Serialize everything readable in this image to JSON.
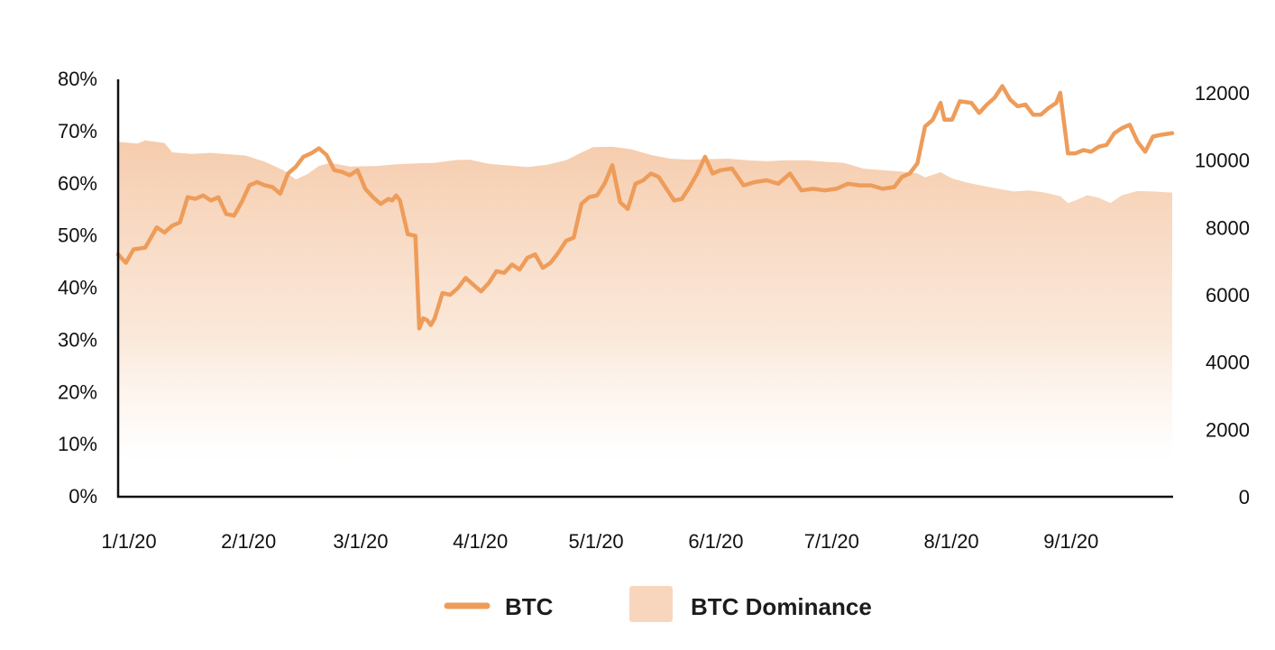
{
  "chart_data": {
    "type": "line",
    "title": "",
    "xlabel": "",
    "ylabel_left": "",
    "ylabel_right": "",
    "colors": {
      "btc_line": "#EE9C5A",
      "dominance_fill": "#F5C9A8",
      "axis": "#111111"
    },
    "left_axis": {
      "ylim": [
        0,
        80
      ],
      "ticks": [
        "0%",
        "10%",
        "20%",
        "30%",
        "40%",
        "50%",
        "60%",
        "70%",
        "80%"
      ]
    },
    "right_axis": {
      "ylim": [
        0,
        12400
      ],
      "ticks": [
        "0",
        "2000",
        "4000",
        "6000",
        "8000",
        "10000",
        "12000"
      ]
    },
    "x_axis": {
      "range": [
        "2020-01-01",
        "2020-09-30"
      ],
      "tick_labels": [
        "1/1/20",
        "2/1/20",
        "3/1/20",
        "4/1/20",
        "5/1/20",
        "6/1/20",
        "7/1/20",
        "8/1/20",
        "9/1/20"
      ],
      "tick_dates": [
        "2020-01-01",
        "2020-02-01",
        "2020-03-01",
        "2020-04-01",
        "2020-05-01",
        "2020-06-01",
        "2020-07-01",
        "2020-08-01",
        "2020-09-01"
      ]
    },
    "grid": false,
    "legend_position": "bottom-center",
    "series": [
      {
        "name": "BTC",
        "kind": "line",
        "axis": "right",
        "points": [
          [
            "2020-01-01",
            7200
          ],
          [
            "2020-01-03",
            6950
          ],
          [
            "2020-01-05",
            7350
          ],
          [
            "2020-01-08",
            7400
          ],
          [
            "2020-01-11",
            8000
          ],
          [
            "2020-01-13",
            7850
          ],
          [
            "2020-01-15",
            8050
          ],
          [
            "2020-01-17",
            8150
          ],
          [
            "2020-01-19",
            8900
          ],
          [
            "2020-01-21",
            8850
          ],
          [
            "2020-01-23",
            8950
          ],
          [
            "2020-01-25",
            8800
          ],
          [
            "2020-01-27",
            8900
          ],
          [
            "2020-01-29",
            8400
          ],
          [
            "2020-01-31",
            8350
          ],
          [
            "2020-02-02",
            8750
          ],
          [
            "2020-02-04",
            9250
          ],
          [
            "2020-02-06",
            9350
          ],
          [
            "2020-02-08",
            9250
          ],
          [
            "2020-02-10",
            9200
          ],
          [
            "2020-02-12",
            9000
          ],
          [
            "2020-02-14",
            9600
          ],
          [
            "2020-02-16",
            9800
          ],
          [
            "2020-02-18",
            10100
          ],
          [
            "2020-02-20",
            10200
          ],
          [
            "2020-02-22",
            10350
          ],
          [
            "2020-02-24",
            10150
          ],
          [
            "2020-02-26",
            9700
          ],
          [
            "2020-02-28",
            9650
          ],
          [
            "2020-03-01",
            9550
          ],
          [
            "2020-03-03",
            9700
          ],
          [
            "2020-03-05",
            9150
          ],
          [
            "2020-03-07",
            8900
          ],
          [
            "2020-03-09",
            8700
          ],
          [
            "2020-03-11",
            8850
          ],
          [
            "2020-03-12",
            8800
          ],
          [
            "2020-03-13",
            8950
          ],
          [
            "2020-03-14",
            8800
          ],
          [
            "2020-03-16",
            7800
          ],
          [
            "2020-03-18",
            7750
          ],
          [
            "2020-03-19",
            5000
          ],
          [
            "2020-03-20",
            5300
          ],
          [
            "2020-03-21",
            5250
          ],
          [
            "2020-03-22",
            5100
          ],
          [
            "2020-03-23",
            5300
          ],
          [
            "2020-03-25",
            6050
          ],
          [
            "2020-03-27",
            6000
          ],
          [
            "2020-03-29",
            6200
          ],
          [
            "2020-03-31",
            6500
          ],
          [
            "2020-04-02",
            6300
          ],
          [
            "2020-04-04",
            6100
          ],
          [
            "2020-04-06",
            6350
          ],
          [
            "2020-04-08",
            6700
          ],
          [
            "2020-04-10",
            6650
          ],
          [
            "2020-04-12",
            6900
          ],
          [
            "2020-04-14",
            6750
          ],
          [
            "2020-04-16",
            7100
          ],
          [
            "2020-04-18",
            7200
          ],
          [
            "2020-04-20",
            6800
          ],
          [
            "2020-04-22",
            6950
          ],
          [
            "2020-04-24",
            7250
          ],
          [
            "2020-04-26",
            7600
          ],
          [
            "2020-04-28",
            7700
          ],
          [
            "2020-04-30",
            8700
          ],
          [
            "2020-05-02",
            8900
          ],
          [
            "2020-05-04",
            8950
          ],
          [
            "2020-05-06",
            9300
          ],
          [
            "2020-05-08",
            9850
          ],
          [
            "2020-05-10",
            8750
          ],
          [
            "2020-05-12",
            8550
          ],
          [
            "2020-05-14",
            9300
          ],
          [
            "2020-05-16",
            9400
          ],
          [
            "2020-05-18",
            9600
          ],
          [
            "2020-05-20",
            9500
          ],
          [
            "2020-05-22",
            9150
          ],
          [
            "2020-05-24",
            8800
          ],
          [
            "2020-05-26",
            8850
          ],
          [
            "2020-05-28",
            9200
          ],
          [
            "2020-05-30",
            9600
          ],
          [
            "2020-06-01",
            10100
          ],
          [
            "2020-06-03",
            9600
          ],
          [
            "2020-06-05",
            9700
          ],
          [
            "2020-06-08",
            9750
          ],
          [
            "2020-06-11",
            9250
          ],
          [
            "2020-06-14",
            9350
          ],
          [
            "2020-06-17",
            9400
          ],
          [
            "2020-06-20",
            9300
          ],
          [
            "2020-06-23",
            9600
          ],
          [
            "2020-06-26",
            9100
          ],
          [
            "2020-06-29",
            9150
          ],
          [
            "2020-07-02",
            9100
          ],
          [
            "2020-07-05",
            9150
          ],
          [
            "2020-07-08",
            9300
          ],
          [
            "2020-07-11",
            9250
          ],
          [
            "2020-07-14",
            9250
          ],
          [
            "2020-07-17",
            9150
          ],
          [
            "2020-07-20",
            9200
          ],
          [
            "2020-07-22",
            9500
          ],
          [
            "2020-07-24",
            9600
          ],
          [
            "2020-07-26",
            9900
          ],
          [
            "2020-07-28",
            11000
          ],
          [
            "2020-07-30",
            11200
          ],
          [
            "2020-08-01",
            11700
          ],
          [
            "2020-08-02",
            11200
          ],
          [
            "2020-08-04",
            11200
          ],
          [
            "2020-08-06",
            11750
          ],
          [
            "2020-08-09",
            11700
          ],
          [
            "2020-08-11",
            11400
          ],
          [
            "2020-08-13",
            11650
          ],
          [
            "2020-08-15",
            11850
          ],
          [
            "2020-08-17",
            12200
          ],
          [
            "2020-08-19",
            11800
          ],
          [
            "2020-08-21",
            11600
          ],
          [
            "2020-08-23",
            11650
          ],
          [
            "2020-08-25",
            11350
          ],
          [
            "2020-08-27",
            11350
          ],
          [
            "2020-08-29",
            11550
          ],
          [
            "2020-08-31",
            11700
          ],
          [
            "2020-09-01",
            12000
          ],
          [
            "2020-09-03",
            10200
          ],
          [
            "2020-09-05",
            10200
          ],
          [
            "2020-09-07",
            10300
          ],
          [
            "2020-09-09",
            10250
          ],
          [
            "2020-09-11",
            10400
          ],
          [
            "2020-09-13",
            10450
          ],
          [
            "2020-09-15",
            10800
          ],
          [
            "2020-09-17",
            10950
          ],
          [
            "2020-09-19",
            11050
          ],
          [
            "2020-09-21",
            10550
          ],
          [
            "2020-09-23",
            10250
          ],
          [
            "2020-09-25",
            10700
          ],
          [
            "2020-09-27",
            10750
          ],
          [
            "2020-09-30",
            10800
          ]
        ]
      },
      {
        "name": "BTC Dominance",
        "kind": "area",
        "axis": "left",
        "points": [
          [
            "2020-01-01",
            68.0
          ],
          [
            "2020-01-06",
            67.7
          ],
          [
            "2020-01-08",
            68.3
          ],
          [
            "2020-01-13",
            67.8
          ],
          [
            "2020-01-15",
            66.0
          ],
          [
            "2020-01-20",
            65.7
          ],
          [
            "2020-01-25",
            65.9
          ],
          [
            "2020-01-30",
            65.6
          ],
          [
            "2020-02-03",
            65.4
          ],
          [
            "2020-02-08",
            64.2
          ],
          [
            "2020-02-13",
            62.5
          ],
          [
            "2020-02-16",
            60.8
          ],
          [
            "2020-02-19",
            61.8
          ],
          [
            "2020-02-22",
            63.4
          ],
          [
            "2020-02-25",
            64.0
          ],
          [
            "2020-03-01",
            63.3
          ],
          [
            "2020-03-08",
            63.4
          ],
          [
            "2020-03-13",
            63.7
          ],
          [
            "2020-03-18",
            63.9
          ],
          [
            "2020-03-23",
            64.0
          ],
          [
            "2020-03-28",
            64.5
          ],
          [
            "2020-04-01",
            64.6
          ],
          [
            "2020-04-06",
            63.8
          ],
          [
            "2020-04-11",
            63.5
          ],
          [
            "2020-04-16",
            63.2
          ],
          [
            "2020-04-21",
            63.6
          ],
          [
            "2020-04-26",
            64.5
          ],
          [
            "2020-04-29",
            65.6
          ],
          [
            "2020-05-03",
            67.0
          ],
          [
            "2020-05-08",
            67.1
          ],
          [
            "2020-05-13",
            66.6
          ],
          [
            "2020-05-18",
            65.5
          ],
          [
            "2020-05-23",
            64.8
          ],
          [
            "2020-05-28",
            64.6
          ],
          [
            "2020-06-02",
            64.7
          ],
          [
            "2020-06-07",
            64.8
          ],
          [
            "2020-06-12",
            64.5
          ],
          [
            "2020-06-17",
            64.3
          ],
          [
            "2020-06-22",
            64.5
          ],
          [
            "2020-06-27",
            64.5
          ],
          [
            "2020-07-02",
            64.2
          ],
          [
            "2020-07-07",
            64.0
          ],
          [
            "2020-07-12",
            62.9
          ],
          [
            "2020-07-17",
            62.6
          ],
          [
            "2020-07-22",
            62.3
          ],
          [
            "2020-07-26",
            62.0
          ],
          [
            "2020-07-28",
            61.2
          ],
          [
            "2020-08-01",
            62.2
          ],
          [
            "2020-08-04",
            61.0
          ],
          [
            "2020-08-08",
            60.2
          ],
          [
            "2020-08-12",
            59.6
          ],
          [
            "2020-08-16",
            59.0
          ],
          [
            "2020-08-20",
            58.5
          ],
          [
            "2020-08-24",
            58.7
          ],
          [
            "2020-08-28",
            58.3
          ],
          [
            "2020-09-01",
            57.6
          ],
          [
            "2020-09-03",
            56.3
          ],
          [
            "2020-09-05",
            56.8
          ],
          [
            "2020-09-08",
            57.8
          ],
          [
            "2020-09-11",
            57.3
          ],
          [
            "2020-09-14",
            56.3
          ],
          [
            "2020-09-17",
            57.8
          ],
          [
            "2020-09-21",
            58.6
          ],
          [
            "2020-09-25",
            58.5
          ],
          [
            "2020-09-30",
            58.3
          ]
        ]
      }
    ]
  },
  "legend": {
    "btc_label": "BTC",
    "dominance_label": "BTC Dominance"
  }
}
